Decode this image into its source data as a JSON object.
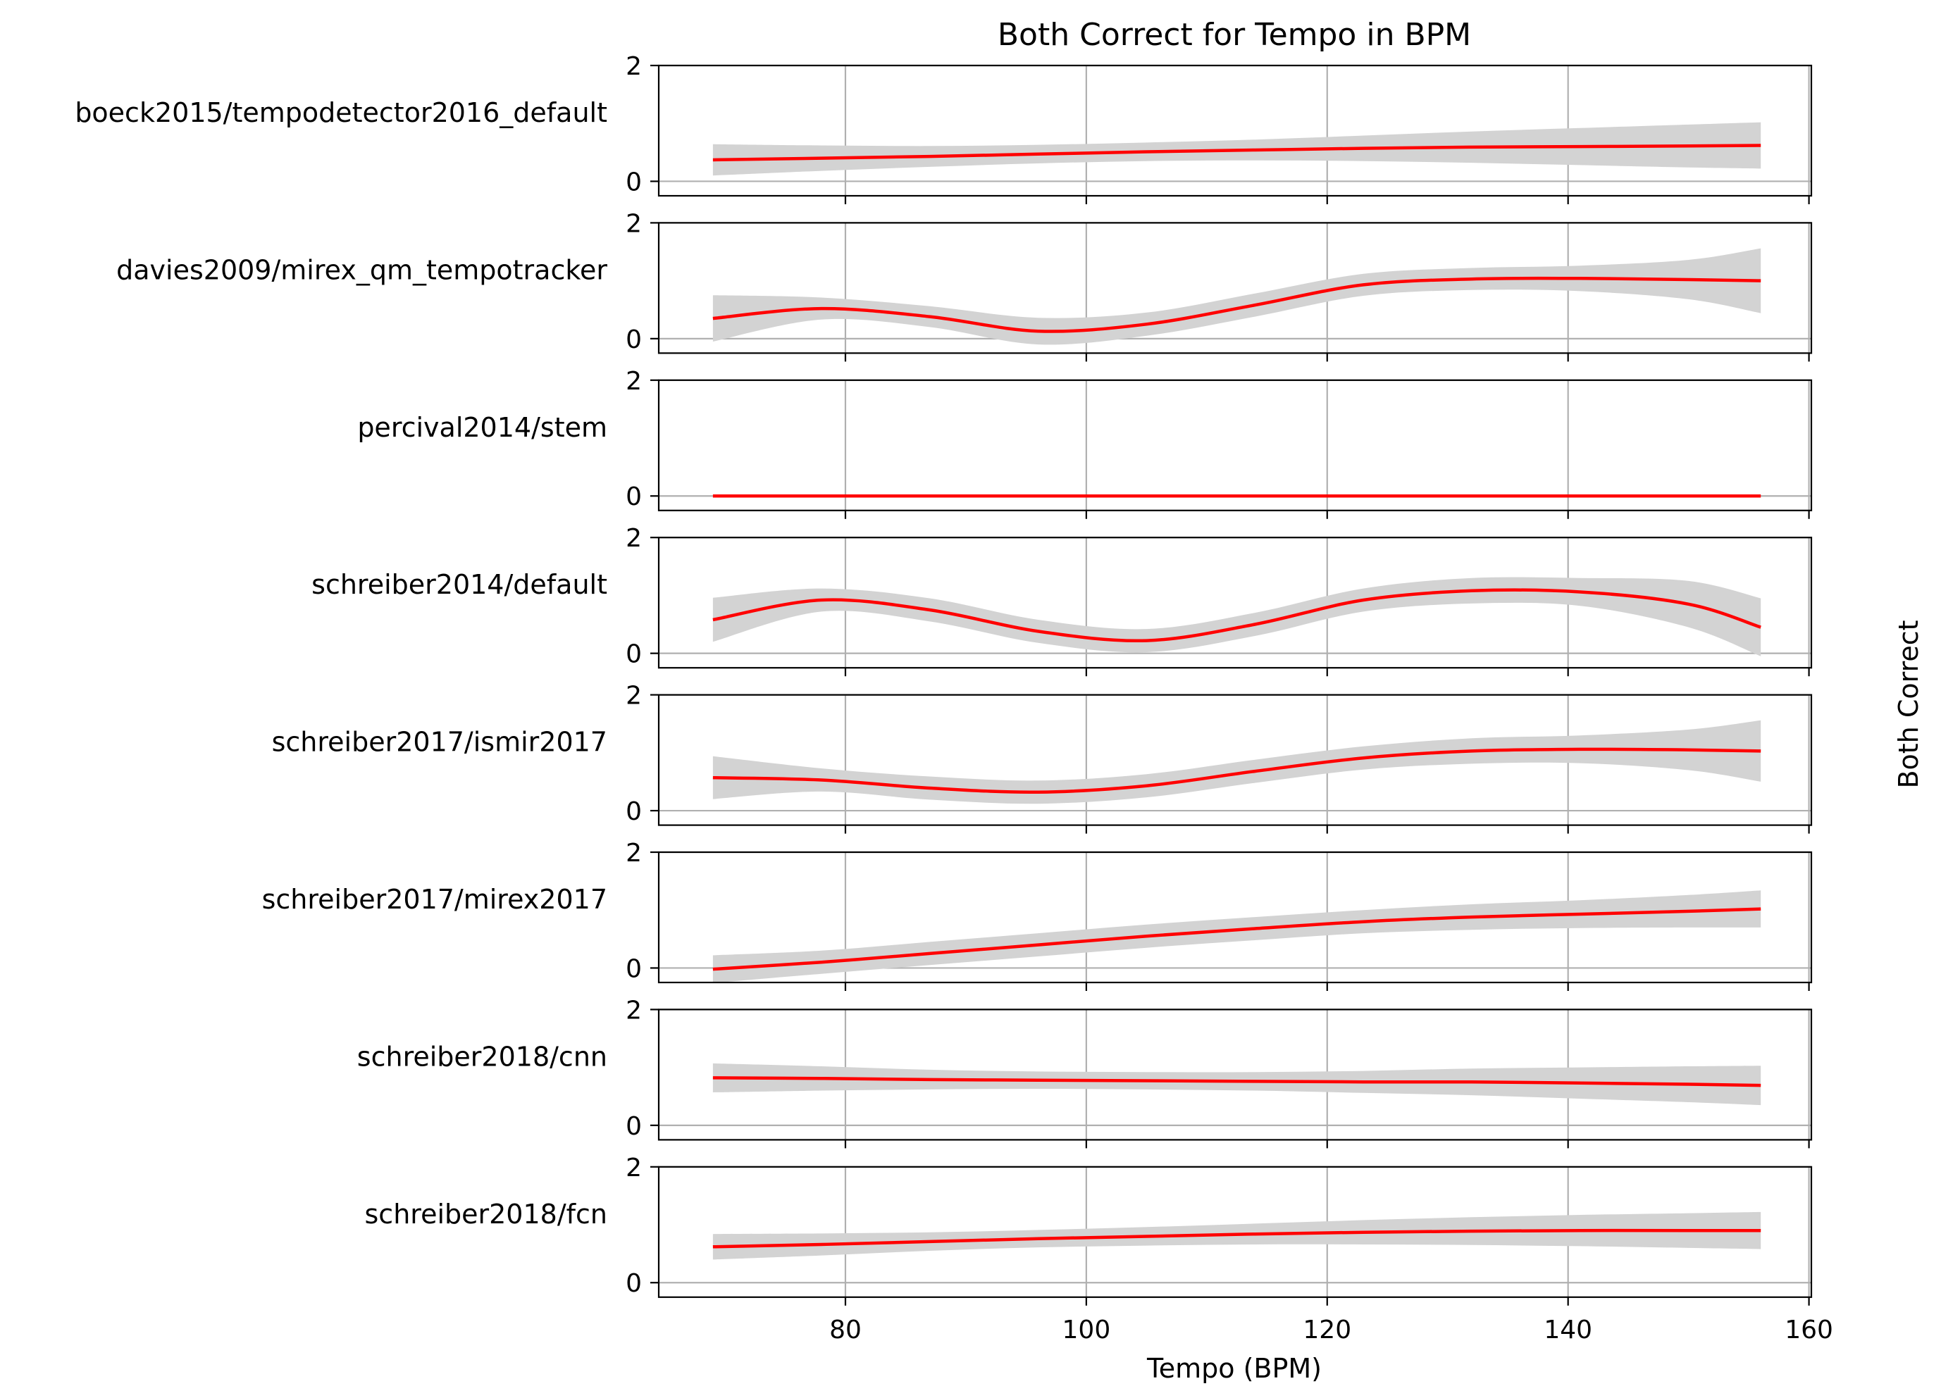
{
  "chart_data": {
    "type": "line",
    "title": "Both Correct for Tempo in BPM",
    "xlabel": "Tempo (BPM)",
    "ylabel": "Both Correct",
    "xlim": [
      64.5,
      160.2
    ],
    "ylim": [
      -0.25,
      2.0
    ],
    "x_ticks": [
      80,
      100,
      120,
      140,
      160
    ],
    "y_ticks": [
      0,
      2
    ],
    "grid": true,
    "colors": {
      "line": "#ff0000",
      "band": "#d3d3d3",
      "grid": "#b0b0b0"
    },
    "x": [
      69,
      78,
      87,
      96,
      105,
      114,
      123,
      132,
      141,
      150,
      156
    ],
    "series": [
      {
        "name": "boeck2015/tempodetector2016_default",
        "values": [
          0.37,
          0.4,
          0.43,
          0.47,
          0.51,
          0.54,
          0.57,
          0.59,
          0.6,
          0.61,
          0.62
        ],
        "lower": [
          0.1,
          0.18,
          0.25,
          0.31,
          0.35,
          0.36,
          0.35,
          0.32,
          0.28,
          0.24,
          0.22
        ],
        "upper": [
          0.64,
          0.62,
          0.61,
          0.63,
          0.67,
          0.72,
          0.79,
          0.86,
          0.92,
          0.98,
          1.02
        ]
      },
      {
        "name": "davies2009/mirex_qm_tempotracker",
        "values": [
          0.35,
          0.52,
          0.38,
          0.13,
          0.25,
          0.58,
          0.93,
          1.03,
          1.04,
          1.02,
          1.0
        ],
        "lower": [
          -0.05,
          0.33,
          0.2,
          -0.1,
          0.05,
          0.38,
          0.74,
          0.84,
          0.82,
          0.68,
          0.44
        ],
        "upper": [
          0.75,
          0.71,
          0.56,
          0.36,
          0.45,
          0.78,
          1.12,
          1.22,
          1.26,
          1.36,
          1.56
        ]
      },
      {
        "name": "percival2014/stem",
        "values": [
          0,
          0,
          0,
          0,
          0,
          0,
          0,
          0,
          0,
          0,
          0
        ],
        "lower": [
          0,
          0,
          0,
          0,
          0,
          0,
          0,
          0,
          0,
          0,
          0
        ],
        "upper": [
          0,
          0,
          0,
          0,
          0,
          0,
          0,
          0,
          0,
          0,
          0
        ]
      },
      {
        "name": "schreiber2014/default",
        "values": [
          0.58,
          0.92,
          0.75,
          0.38,
          0.22,
          0.5,
          0.92,
          1.08,
          1.06,
          0.85,
          0.45
        ],
        "lower": [
          0.2,
          0.72,
          0.55,
          0.18,
          0.02,
          0.3,
          0.72,
          0.86,
          0.82,
          0.45,
          -0.05
        ],
        "upper": [
          0.96,
          1.12,
          0.95,
          0.58,
          0.42,
          0.7,
          1.12,
          1.3,
          1.3,
          1.25,
          0.95
        ]
      },
      {
        "name": "schreiber2017/ismir2017",
        "values": [
          0.57,
          0.53,
          0.39,
          0.32,
          0.43,
          0.68,
          0.91,
          1.03,
          1.06,
          1.05,
          1.03
        ],
        "lower": [
          0.2,
          0.33,
          0.19,
          0.12,
          0.23,
          0.48,
          0.71,
          0.81,
          0.82,
          0.7,
          0.5
        ],
        "upper": [
          0.94,
          0.73,
          0.59,
          0.52,
          0.63,
          0.88,
          1.11,
          1.25,
          1.3,
          1.4,
          1.56
        ]
      },
      {
        "name": "schreiber2017/mirex2017",
        "values": [
          -0.02,
          0.1,
          0.25,
          0.4,
          0.55,
          0.68,
          0.8,
          0.88,
          0.93,
          0.98,
          1.02
        ],
        "lower": [
          -0.26,
          -0.1,
          0.05,
          0.2,
          0.35,
          0.48,
          0.6,
          0.66,
          0.69,
          0.7,
          0.7
        ],
        "upper": [
          0.22,
          0.3,
          0.45,
          0.6,
          0.75,
          0.88,
          1.0,
          1.1,
          1.17,
          1.26,
          1.34
        ]
      },
      {
        "name": "schreiber2018/cnn",
        "values": [
          0.82,
          0.81,
          0.79,
          0.78,
          0.77,
          0.76,
          0.75,
          0.75,
          0.73,
          0.71,
          0.69
        ],
        "lower": [
          0.57,
          0.6,
          0.62,
          0.63,
          0.62,
          0.6,
          0.56,
          0.52,
          0.46,
          0.4,
          0.35
        ],
        "upper": [
          1.07,
          1.02,
          0.96,
          0.93,
          0.92,
          0.92,
          0.94,
          0.98,
          1.0,
          1.02,
          1.03
        ]
      },
      {
        "name": "schreiber2018/fcn",
        "values": [
          0.62,
          0.66,
          0.71,
          0.76,
          0.8,
          0.84,
          0.87,
          0.89,
          0.9,
          0.9,
          0.9
        ],
        "lower": [
          0.4,
          0.47,
          0.55,
          0.61,
          0.64,
          0.66,
          0.66,
          0.65,
          0.63,
          0.6,
          0.58
        ],
        "upper": [
          0.84,
          0.85,
          0.87,
          0.91,
          0.96,
          1.02,
          1.08,
          1.13,
          1.17,
          1.2,
          1.22
        ]
      }
    ]
  }
}
